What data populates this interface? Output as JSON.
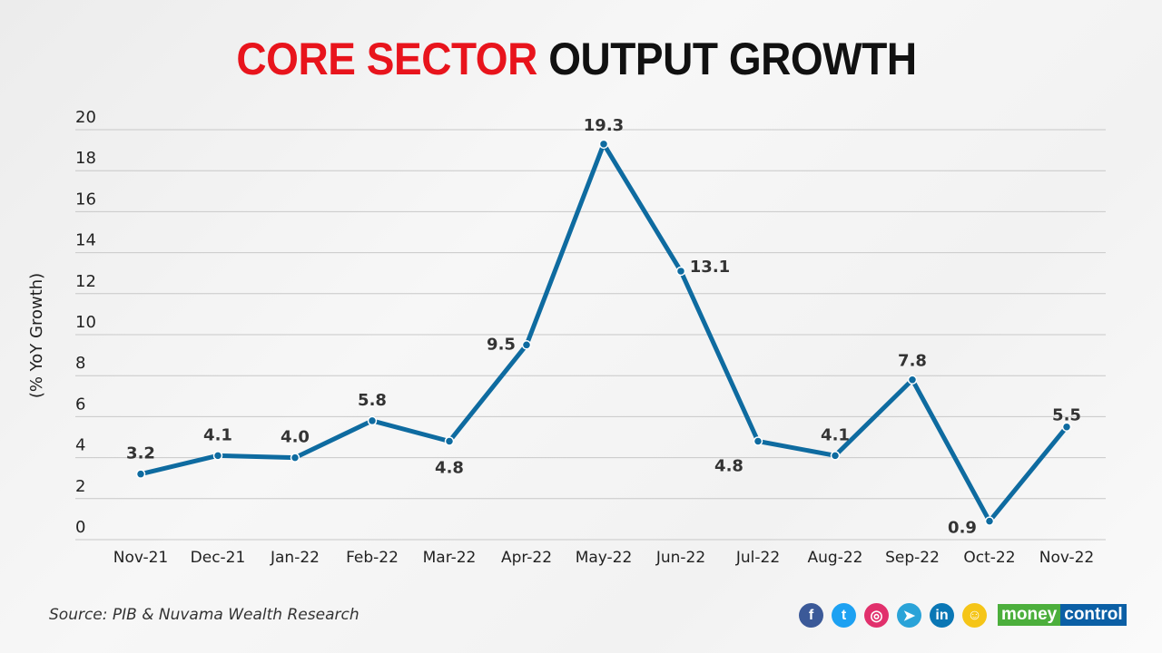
{
  "title": {
    "part1": "CORE SECTOR",
    "part2": "OUTPUT GROWTH"
  },
  "source": "Source: PIB & Nuvama Wealth Research",
  "social": [
    {
      "name": "facebook-icon",
      "glyph": "f",
      "color": "#3b5998"
    },
    {
      "name": "twitter-icon",
      "glyph": "t",
      "color": "#1da1f2"
    },
    {
      "name": "instagram-icon",
      "glyph": "◎",
      "color": "#e1306c"
    },
    {
      "name": "telegram-icon",
      "glyph": "➤",
      "color": "#2aa3d8"
    },
    {
      "name": "linkedin-icon",
      "glyph": "in",
      "color": "#0a77b5"
    },
    {
      "name": "snapchat-icon",
      "glyph": "☺",
      "color": "#f5c518"
    }
  ],
  "brand": {
    "part1": "money",
    "part2": "control",
    "color1": "#4caf3c",
    "color2": "#0b5fa5"
  },
  "chart_data": {
    "type": "line",
    "title": "CORE SECTOR OUTPUT GROWTH",
    "xlabel": "",
    "ylabel": "(% YoY Growth)",
    "ylim": [
      0,
      20
    ],
    "yticks": [
      0,
      2,
      4,
      6,
      8,
      10,
      12,
      14,
      16,
      18,
      20
    ],
    "grid": true,
    "line_color": "#0e6ba0",
    "categories": [
      "Nov-21",
      "Dec-21",
      "Jan-22",
      "Feb-22",
      "Mar-22",
      "Apr-22",
      "May-22",
      "Jun-22",
      "Jul-22",
      "Aug-22",
      "Sep-22",
      "Oct-22",
      "Nov-22"
    ],
    "values": [
      3.2,
      4.1,
      4.0,
      5.8,
      4.8,
      9.5,
      19.3,
      13.1,
      4.8,
      4.1,
      7.8,
      0.9,
      5.5
    ],
    "labels": [
      "3.2",
      "4.1",
      "4.0",
      "5.8",
      "4.8",
      "9.5",
      "19.3",
      "13.1",
      "4.8",
      "4.1",
      "7.8",
      "0.9",
      "5.5"
    ]
  }
}
